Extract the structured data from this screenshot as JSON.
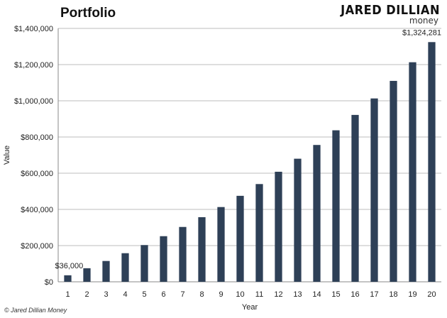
{
  "brand": {
    "name": "JARED DILLIAN",
    "sub": "money"
  },
  "copyright": "© Jared Dillian Money",
  "chart_data": {
    "type": "bar",
    "title": "Portfolio",
    "xlabel": "Year",
    "ylabel": "Value",
    "ylim": [
      0,
      1400000
    ],
    "yticks": [
      0,
      200000,
      400000,
      600000,
      800000,
      1000000,
      1200000,
      1400000
    ],
    "ytick_labels": [
      "$0",
      "$200,000",
      "$400,000",
      "$600,000",
      "$800,000",
      "$1,000,000",
      "$1,200,000",
      "$1,400,000"
    ],
    "grid": true,
    "bar_color": "#2e4057",
    "categories": [
      "1",
      "2",
      "3",
      "4",
      "5",
      "6",
      "7",
      "8",
      "9",
      "10",
      "11",
      "12",
      "13",
      "14",
      "15",
      "16",
      "17",
      "18",
      "19",
      "20"
    ],
    "values": [
      36000,
      75000,
      115000,
      158000,
      203000,
      252000,
      303000,
      357000,
      413000,
      475000,
      540000,
      608000,
      680000,
      756000,
      837000,
      922000,
      1013000,
      1110000,
      1213000,
      1324281
    ],
    "annotations": [
      {
        "index": 0,
        "text": "$36,000"
      },
      {
        "index": 19,
        "text": "$1,324,281"
      }
    ]
  }
}
